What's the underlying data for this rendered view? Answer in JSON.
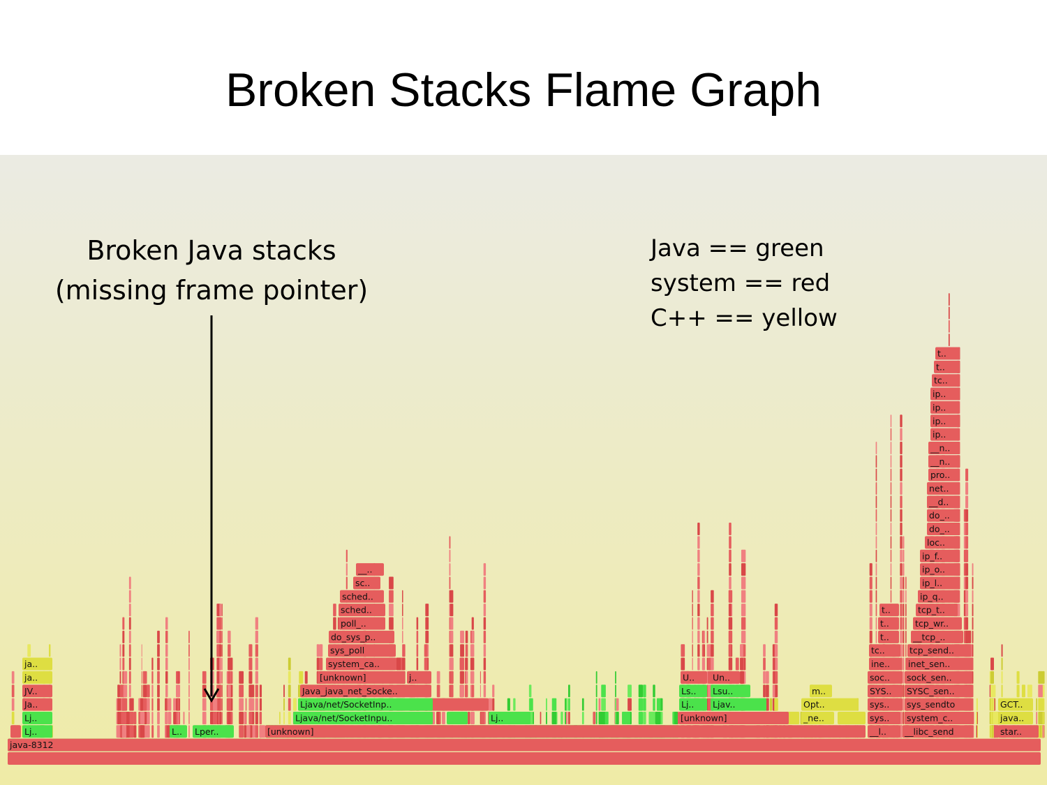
{
  "slide": {
    "title": "Broken Stacks Flame Graph",
    "annotation": [
      "Broken Java stacks",
      "(missing frame pointer)"
    ],
    "legend": [
      "Java == green",
      "system == red",
      "C++ == yellow"
    ]
  },
  "flame_graph": {
    "frames": [
      "java-8312",
      "Lj..",
      "L..",
      "Lper..",
      "[unknown]",
      "__l..",
      "__libc_send",
      "star..",
      "Lj..",
      "Ljava/net/SocketInpu..",
      "Lj..",
      "[unknown]",
      "_ne..",
      "sys..",
      "system_c..",
      "java..",
      "Ja..",
      "Ljava/net/SocketInp..",
      "Lj..",
      "Ljav..",
      "Opt..",
      "sys..",
      "sys_sendto",
      "GCT..",
      "JV..",
      "Java_java_net_Socke..",
      "Ls..",
      "Lsu..",
      "m..",
      "SYS..",
      "SYSC_sen..",
      "ja..",
      "[unknown]",
      "j..",
      "U..",
      "Un..",
      "soc..",
      "sock_sen..",
      "ja..",
      "system_ca..",
      "ine..",
      "inet_sen..",
      "sys_poll",
      "tc..",
      "tcp_send..",
      "do_sys_p..",
      "t..",
      "__tcp_..",
      "poll_..",
      "t..",
      "tcp_wr..",
      "sched..",
      "t..",
      "tcp_t..",
      "sched..",
      "ip_q..",
      "sc..",
      "ip_l..",
      "__..",
      "ip_o..",
      "ip_f..",
      "loc..",
      "do_..",
      "do_..",
      "__d..",
      "net..",
      "pro..",
      "__n..",
      "__n..",
      "ip..",
      "ip..",
      "ip..",
      "ip..",
      "tc..",
      "t..",
      "t.."
    ]
  }
}
